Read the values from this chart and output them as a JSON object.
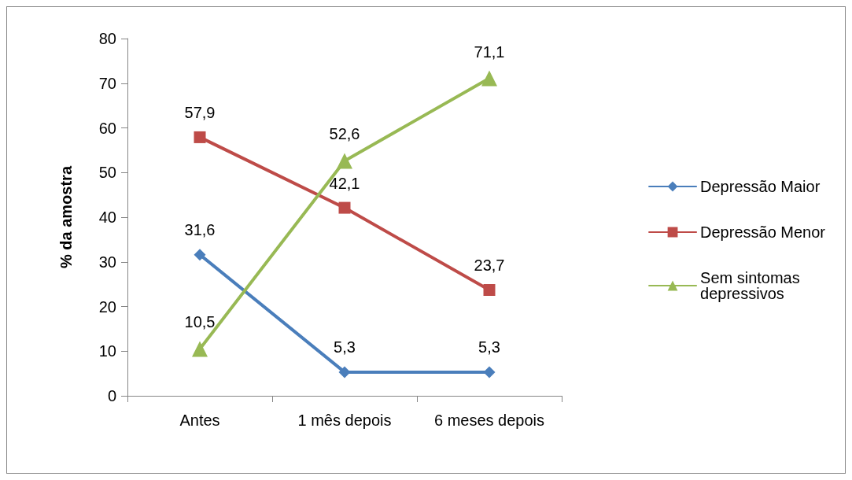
{
  "chart_data": {
    "type": "line",
    "ylabel": "% da amostra",
    "categories": [
      "Antes",
      "1 mês depois",
      "6 meses depois"
    ],
    "ylim": [
      0,
      80
    ],
    "yticks": [
      0,
      10,
      20,
      30,
      40,
      50,
      60,
      70,
      80
    ],
    "grid": false,
    "legend": "right",
    "line_style": "solid",
    "series": [
      {
        "name": "Depressão Maior",
        "color": "#4a7ebb",
        "marker": "diamond",
        "values": [
          31.6,
          5.3,
          5.3
        ],
        "value_labels": [
          "31,6",
          "5,3",
          "5,3"
        ]
      },
      {
        "name": "Depressão Menor",
        "color": "#be4b48",
        "marker": "square",
        "values": [
          57.9,
          42.1,
          23.7
        ],
        "value_labels": [
          "57,9",
          "42,1",
          "23,7"
        ]
      },
      {
        "name": "Sem sintomas depressivos",
        "color": "#98b954",
        "marker": "triangle",
        "values": [
          10.5,
          52.6,
          71.1
        ],
        "value_labels": [
          "10,5",
          "52,6",
          "71,1"
        ]
      }
    ]
  }
}
